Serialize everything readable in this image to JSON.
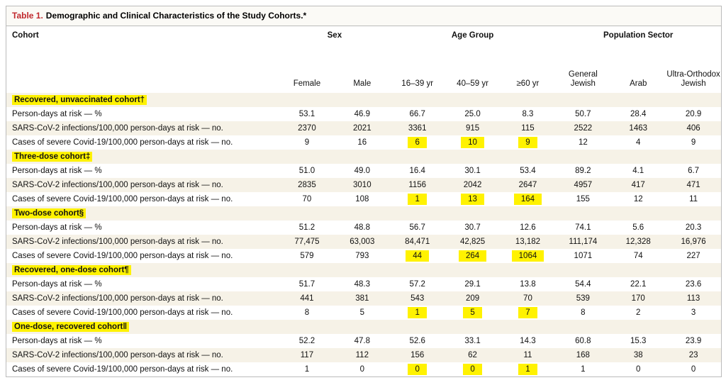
{
  "title_label": "Table 1.",
  "title": "Demographic and Clinical Characteristics of the Study Cohorts.*",
  "header": {
    "cohort": "Cohort",
    "groups": [
      {
        "name": "Sex",
        "span": 2
      },
      {
        "name": "Age Group",
        "span": 3
      },
      {
        "name": "Population Sector",
        "span": 3
      }
    ],
    "columns": [
      "Female",
      "Male",
      "16–39 yr",
      "40–59 yr",
      "≥60 yr",
      "General Jewish",
      "Arab",
      "Ultra-Orthodox Jewish"
    ]
  },
  "sections": [
    {
      "name": "Recovered, unvaccinated cohort†",
      "rows": [
        {
          "label": "Person-days at risk — %",
          "values": [
            "53.1",
            "46.9",
            "66.7",
            "25.0",
            "8.3",
            "50.7",
            "28.4",
            "20.9"
          ]
        },
        {
          "label": "SARS-CoV-2 infections/100,000 person-days at risk — no.",
          "values": [
            "2370",
            "2021",
            "3361",
            "915",
            "115",
            "2522",
            "1463",
            "406"
          ]
        },
        {
          "label": "Cases of severe Covid-19/100,000 person-days at risk — no.",
          "values": [
            "9",
            "16",
            "6",
            "10",
            "9",
            "12",
            "4",
            "9"
          ]
        }
      ]
    },
    {
      "name": "Three-dose cohort‡",
      "rows": [
        {
          "label": "Person-days at risk — %",
          "values": [
            "51.0",
            "49.0",
            "16.4",
            "30.1",
            "53.4",
            "89.2",
            "4.1",
            "6.7"
          ]
        },
        {
          "label": "SARS-CoV-2 infections/100,000 person-days at risk — no.",
          "values": [
            "2835",
            "3010",
            "1156",
            "2042",
            "2647",
            "4957",
            "417",
            "471"
          ]
        },
        {
          "label": "Cases of severe Covid-19/100,000 person-days at risk — no.",
          "values": [
            "70",
            "108",
            "1",
            "13",
            "164",
            "155",
            "12",
            "11"
          ]
        }
      ]
    },
    {
      "name": "Two-dose cohort§",
      "rows": [
        {
          "label": "Person-days at risk — %",
          "values": [
            "51.2",
            "48.8",
            "56.7",
            "30.7",
            "12.6",
            "74.1",
            "5.6",
            "20.3"
          ]
        },
        {
          "label": "SARS-CoV-2 infections/100,000 person-days at risk — no.",
          "values": [
            "77,475",
            "63,003",
            "84,471",
            "42,825",
            "13,182",
            "111,174",
            "12,328",
            "16,976"
          ]
        },
        {
          "label": "Cases of severe Covid-19/100,000 person-days at risk — no.",
          "values": [
            "579",
            "793",
            "44",
            "264",
            "1064",
            "1071",
            "74",
            "227"
          ]
        }
      ]
    },
    {
      "name": "Recovered, one-dose cohort¶",
      "rows": [
        {
          "label": "Person-days at risk — %",
          "values": [
            "51.7",
            "48.3",
            "57.2",
            "29.1",
            "13.8",
            "54.4",
            "22.1",
            "23.6"
          ]
        },
        {
          "label": "SARS-CoV-2 infections/100,000 person-days at risk — no.",
          "values": [
            "441",
            "381",
            "543",
            "209",
            "70",
            "539",
            "170",
            "113"
          ]
        },
        {
          "label": "Cases of severe Covid-19/100,000 person-days at risk — no.",
          "values": [
            "8",
            "5",
            "1",
            "5",
            "7",
            "8",
            "2",
            "3"
          ]
        }
      ]
    },
    {
      "name": "One-dose, recovered cohort‖",
      "rows": [
        {
          "label": "Person-days at risk — %",
          "values": [
            "52.2",
            "47.8",
            "52.6",
            "33.1",
            "14.3",
            "60.8",
            "15.3",
            "23.9"
          ]
        },
        {
          "label": "SARS-CoV-2 infections/100,000 person-days at risk — no.",
          "values": [
            "117",
            "112",
            "156",
            "62",
            "11",
            "168",
            "38",
            "23"
          ]
        },
        {
          "label": "Cases of severe Covid-19/100,000 person-days at risk — no.",
          "values": [
            "1",
            "0",
            "0",
            "0",
            "1",
            "1",
            "0",
            "0"
          ]
        }
      ]
    }
  ]
}
